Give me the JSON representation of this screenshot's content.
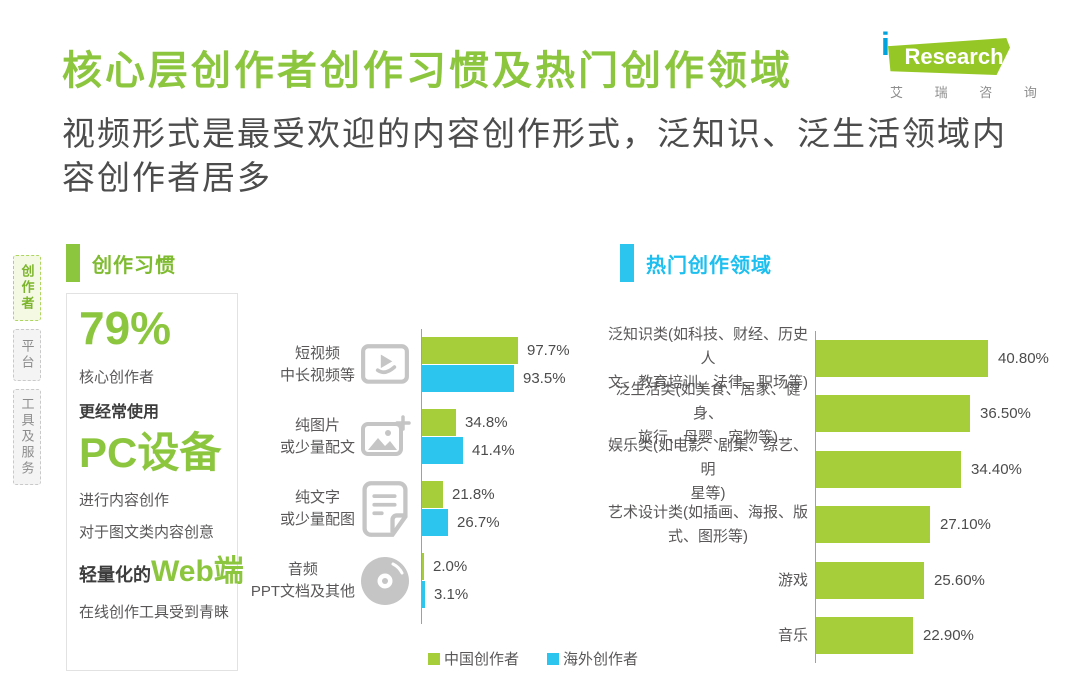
{
  "page": {
    "title": "核心层创作者创作习惯及热门创作领域",
    "subtitle": "视频形式是最受欢迎的内容创作形式，泛知识、泛生活领域内容创作者居多"
  },
  "logo": {
    "i": "i",
    "research": "Research",
    "cn": "艾 瑞 咨 询"
  },
  "sidebar": {
    "tabs": [
      {
        "label": "创作者",
        "active": true
      },
      {
        "label": "平台",
        "active": false
      },
      {
        "label": "工具及服务",
        "active": false
      }
    ]
  },
  "habit_panel": {
    "pct": "79%",
    "pct_desc1": "核心创作者",
    "pct_desc2": "更经常使用",
    "device": "PC设备",
    "device_desc1": "进行内容创作",
    "device_desc2": "对于图文类内容创意",
    "web_prefix": "轻量化的",
    "web": "Web端",
    "web_desc": "在线创作工具受到青睐"
  },
  "colors": {
    "title_green": "#8cc63f",
    "bar_green": "#a6ce3a",
    "bar_cyan": "#2bc5ee",
    "cyan_text": "#1cbfef",
    "gray_text": "#595757",
    "icon_gray": "#c5c5c5"
  },
  "chart_data": [
    {
      "type": "bar",
      "orientation": "horizontal",
      "title": "创作习惯",
      "value_unit": "%",
      "xlim": [
        0,
        100
      ],
      "grid": false,
      "legend_position": "bottom",
      "categories": [
        [
          "短视频",
          "中长视频等"
        ],
        [
          "纯图片",
          "或少量配文"
        ],
        [
          "纯文字",
          "或少量配图"
        ],
        [
          "音频",
          "PPT文档及其他"
        ]
      ],
      "category_icons": [
        "video-icon",
        "image-icon",
        "document-icon",
        "disc-icon"
      ],
      "series": [
        {
          "name": "中国创作者",
          "color": "#a6ce3a",
          "values": [
            97.7,
            34.8,
            21.8,
            2.0
          ],
          "labels": [
            "97.7%",
            "34.8%",
            "21.8%",
            "2.0%"
          ]
        },
        {
          "name": "海外创作者",
          "color": "#2bc5ee",
          "values": [
            93.5,
            41.4,
            26.7,
            3.1
          ],
          "labels": [
            "93.5%",
            "41.4%",
            "26.7%",
            "3.1%"
          ]
        }
      ]
    },
    {
      "type": "bar",
      "orientation": "horizontal",
      "title": "热门创作领域",
      "value_unit": "%",
      "xlim": [
        0,
        45
      ],
      "grid": false,
      "categories": [
        [
          "泛知识类(如科技、财经、历史人",
          "文、教育培训、法律、职场等)"
        ],
        [
          "泛生活类(如美食、居家、健身、",
          "旅行、母婴、宠物等)"
        ],
        [
          "娱乐类(如电影、剧集、综艺、明",
          "星等)"
        ],
        [
          "艺术设计类(如插画、海报、版",
          "式、图形等)"
        ],
        [
          "游戏"
        ],
        [
          "音乐"
        ]
      ],
      "series": [
        {
          "color": "#a6ce3a",
          "values": [
            40.8,
            36.5,
            34.4,
            27.1,
            25.6,
            22.9
          ],
          "labels": [
            "40.80%",
            "36.50%",
            "34.40%",
            "27.10%",
            "25.60%",
            "22.90%"
          ]
        }
      ]
    }
  ]
}
